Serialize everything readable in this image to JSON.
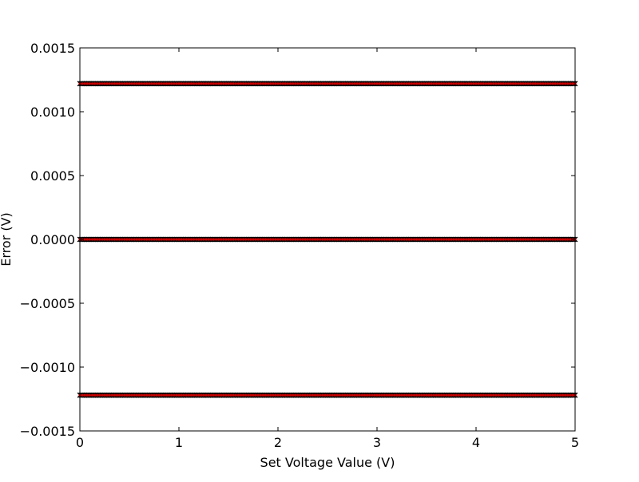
{
  "chart_data": {
    "type": "scatter",
    "title": "",
    "xlabel": "Set Voltage Value (V)",
    "ylabel": "Error (V)",
    "xlim": [
      0,
      5
    ],
    "ylim": [
      -0.0015,
      0.0015
    ],
    "x_ticks": [
      0,
      1,
      2,
      3,
      4,
      5
    ],
    "x_tick_labels": [
      "0",
      "1",
      "2",
      "3",
      "4",
      "5"
    ],
    "y_ticks": [
      -0.0015,
      -0.001,
      -0.0005,
      0,
      0.0005,
      0.001,
      0.0015
    ],
    "y_tick_labels": [
      "−0.0015",
      "−0.0010",
      "−0.0005",
      "0.0000",
      "0.0005",
      "0.0010",
      "0.0015"
    ],
    "grid": false,
    "legend": "none",
    "series": [
      {
        "marker": "x",
        "color": "#000000",
        "x_start": 0,
        "x_end": 5,
        "x_step": 0.0125,
        "levels": [
          0.00122,
          0,
          -0.00122
        ]
      },
      {
        "marker": "dot",
        "color": "#cc0000",
        "x_start": 0,
        "x_end": 5,
        "x_step": 0.025,
        "levels": [
          0.00122,
          0,
          -0.00122
        ]
      }
    ]
  }
}
